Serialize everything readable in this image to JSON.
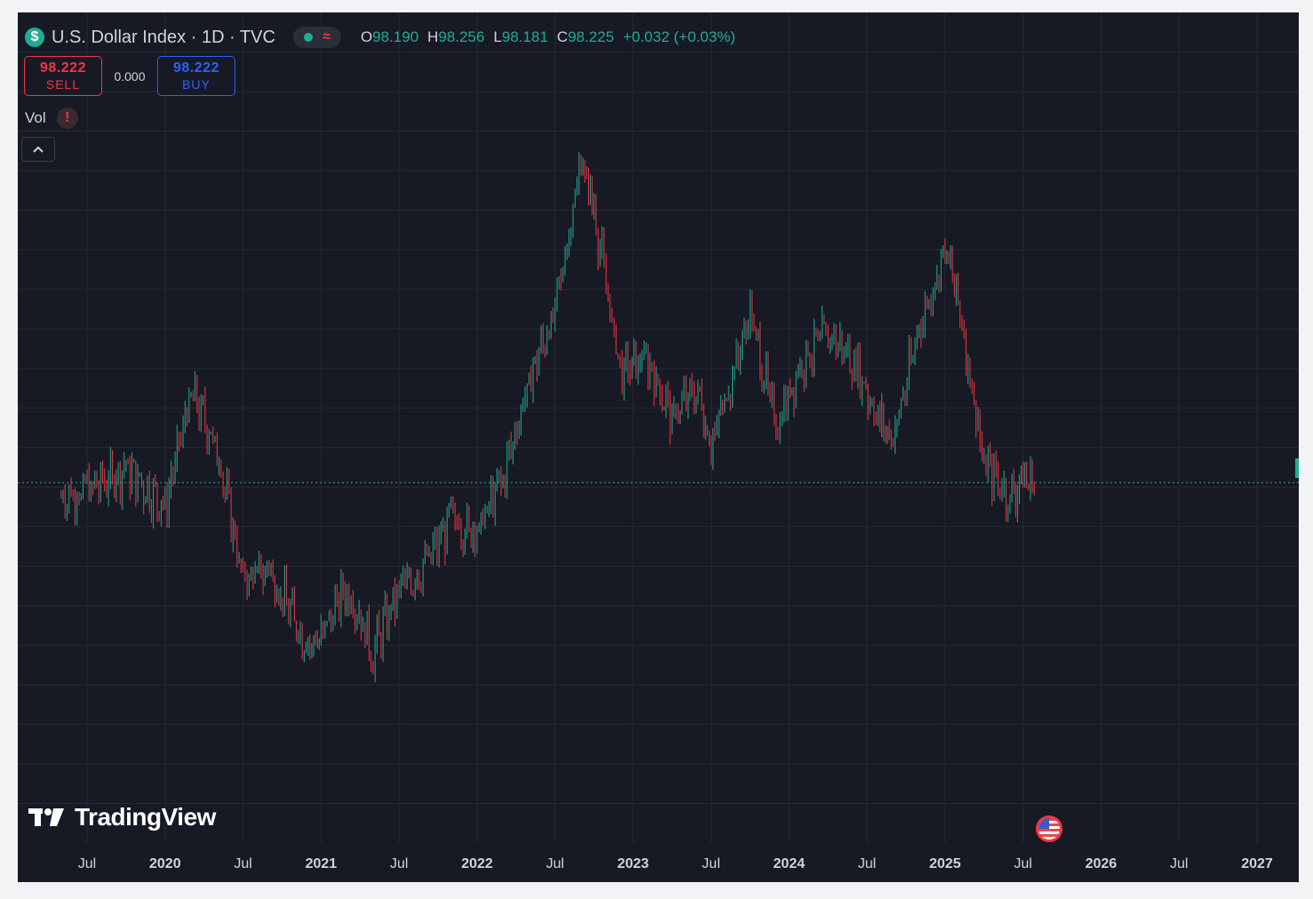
{
  "header": {
    "symbol_icon": "$",
    "title": "U.S. Dollar Index · 1D · TVC",
    "status_wave_icon": "≈",
    "ohlc": {
      "o_label": "O",
      "o_value": "98.190",
      "h_label": "H",
      "h_value": "98.256",
      "l_label": "L",
      "l_value": "98.181",
      "c_label": "C",
      "c_value": "98.225",
      "change": "+0.032 (+0.03%)"
    }
  },
  "trade": {
    "sell_price": "98.222",
    "sell_label": "SELL",
    "spread": "0.000",
    "buy_price": "98.222",
    "buy_label": "BUY"
  },
  "indicators": {
    "vol_label": "Vol",
    "vol_warning": "!"
  },
  "branding": {
    "logo_text": "TradingView"
  },
  "icons": [
    "dollar-icon",
    "live-dot-icon",
    "wave-icon",
    "warning-icon",
    "chevron-up-icon",
    "tradingview-logo-icon",
    "us-flag-icon"
  ],
  "colors": {
    "up": "#22ab94",
    "down": "#f23645",
    "background": "#171a24",
    "grid": "#262a36"
  },
  "chart_data": {
    "type": "line",
    "symbol": "U.S. Dollar Index",
    "interval": "1D",
    "source": "TVC",
    "x_tick_labels": [
      "Jul",
      "2020",
      "Jul",
      "2021",
      "Jul",
      "2022",
      "Jul",
      "2023",
      "Jul",
      "2024",
      "Jul",
      "2025",
      "Jul",
      "2026",
      "Jul",
      "2027"
    ],
    "x": [
      "2019-05",
      "2019-07",
      "2019-10",
      "2020-01",
      "2020-03",
      "2020-05",
      "2020-07",
      "2020-09",
      "2020-12",
      "2021-01",
      "2021-03",
      "2021-05",
      "2021-07",
      "2021-09",
      "2021-11",
      "2022-01",
      "2022-03",
      "2022-05",
      "2022-07",
      "2022-09",
      "2022-10",
      "2022-12",
      "2023-02",
      "2023-04",
      "2023-06",
      "2023-07",
      "2023-10",
      "2023-12",
      "2024-02",
      "2024-04",
      "2024-06",
      "2024-08",
      "2024-09",
      "2024-11",
      "2025-01",
      "2025-02",
      "2025-04",
      "2025-06",
      "2025-07",
      "2025-08"
    ],
    "values": [
      97.5,
      97.8,
      98.9,
      97.0,
      102.8,
      100.0,
      93.3,
      93.8,
      89.9,
      90.5,
      93.0,
      89.7,
      92.8,
      94.0,
      96.3,
      95.7,
      98.5,
      103.4,
      106.9,
      114.5,
      112.0,
      103.8,
      104.5,
      101.6,
      103.0,
      100.0,
      106.8,
      101.0,
      104.4,
      105.8,
      104.4,
      101.3,
      100.4,
      106.0,
      110.0,
      107.5,
      99.2,
      97.5,
      98.4,
      98.225
    ],
    "last_value": 98.225,
    "ylim": [
      80,
      122
    ],
    "grid": true
  }
}
